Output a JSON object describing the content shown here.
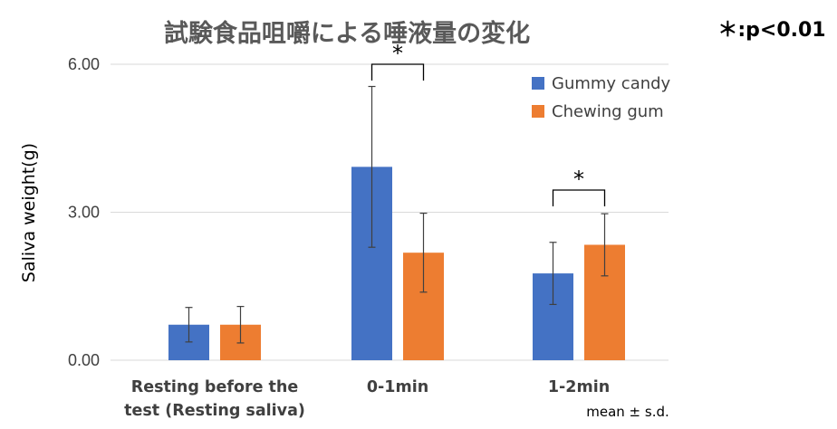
{
  "title": "試験食品咀嚼による唾液量の変化",
  "significance_note": "＊:p<0.01",
  "stat_note": "mean ± s.d.",
  "colors": {
    "gummy": "#4472C4",
    "chewing": "#ED7D31",
    "grid": "#D9D9D9",
    "error": "#404040"
  },
  "chart_data": {
    "type": "bar",
    "title": "試験食品咀嚼による唾液量の変化",
    "ylabel": "Saliva weight(g)",
    "xlabel": "",
    "ylim": [
      0,
      6
    ],
    "yticks": [
      0,
      3,
      6
    ],
    "ytick_labels": [
      "0.00",
      "3.00",
      "6.00"
    ],
    "grid": true,
    "legend_position": "top-right",
    "categories": [
      "Resting before the test (Resting saliva)",
      "0-1min",
      "1-2min"
    ],
    "category_lines": [
      [
        "Resting before the",
        "test (Resting saliva)"
      ],
      [
        "0-1min"
      ],
      [
        "1-2min"
      ]
    ],
    "series": [
      {
        "name": "Gummy candy",
        "values": [
          0.72,
          3.92,
          1.76
        ],
        "sd": [
          0.35,
          1.63,
          0.63
        ]
      },
      {
        "name": "Chewing gum",
        "values": [
          0.72,
          2.18,
          2.34
        ],
        "sd": [
          0.37,
          0.8,
          0.63
        ]
      }
    ],
    "significance": [
      {
        "category_index": 1,
        "label": "*",
        "bracket_top": 6.0
      },
      {
        "category_index": 2,
        "label": "*",
        "bracket_top": 3.45
      }
    ]
  }
}
